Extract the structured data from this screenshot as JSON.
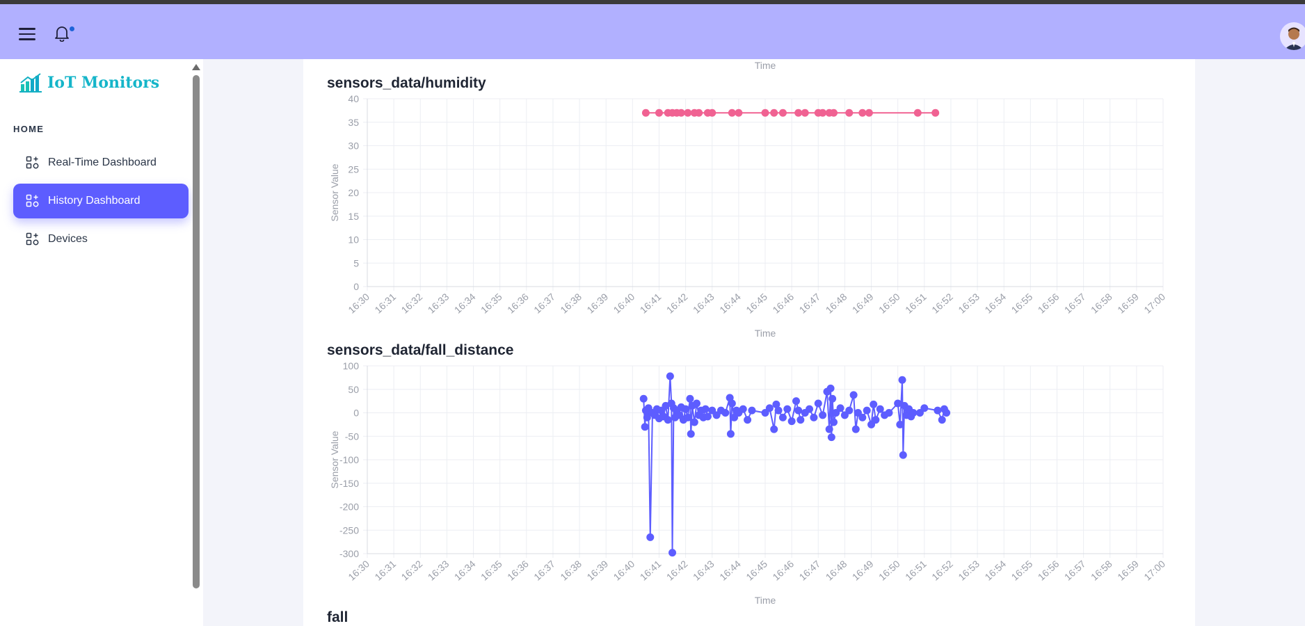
{
  "app": {
    "brand": "IoT Monitors"
  },
  "sidebar": {
    "section_label": "HOME",
    "items": [
      {
        "label": "Real-Time Dashboard",
        "active": false
      },
      {
        "label": "History Dashboard",
        "active": true
      },
      {
        "label": "Devices",
        "active": false
      }
    ]
  },
  "colors": {
    "accent": "#5d5dff",
    "topbar": "#b1b0ff",
    "humidity": "#f06292",
    "fall_distance": "#5d5dff"
  },
  "main": {
    "top_axis_label": "Time",
    "bottom_heading": "fall"
  },
  "chart_data": [
    {
      "type": "line",
      "title": "sensors_data/humidity",
      "xlabel": "Time",
      "ylabel": "Sensor Value",
      "ylim": [
        0,
        40
      ],
      "yticks": [
        "40",
        "35",
        "30",
        "25",
        "20",
        "15",
        "10",
        "5",
        "0"
      ],
      "xticks": [
        "16:30",
        "16:31",
        "16:32",
        "16:33",
        "16:34",
        "16:35",
        "16:36",
        "16:37",
        "16:38",
        "16:39",
        "16:40",
        "16:41",
        "16:42",
        "16:43",
        "16:44",
        "16:45",
        "16:46",
        "16:47",
        "16:48",
        "16:49",
        "16:50",
        "16:51",
        "16:52",
        "16:53",
        "16:54",
        "16:55",
        "16:56",
        "16:57",
        "16:58",
        "16:59",
        "17:00"
      ],
      "grid": true,
      "series": [
        {
          "color": "#f06292",
          "points": [
            [
              "16:40:30",
              37
            ],
            [
              "16:41:00",
              37
            ],
            [
              "16:41:20",
              37
            ],
            [
              "16:41:30",
              37
            ],
            [
              "16:41:40",
              37
            ],
            [
              "16:41:50",
              37
            ],
            [
              "16:42:05",
              37
            ],
            [
              "16:42:20",
              37
            ],
            [
              "16:42:30",
              37
            ],
            [
              "16:42:50",
              37
            ],
            [
              "16:43:00",
              37
            ],
            [
              "16:43:45",
              37
            ],
            [
              "16:44:00",
              37
            ],
            [
              "16:45:00",
              37
            ],
            [
              "16:45:20",
              37
            ],
            [
              "16:45:40",
              37
            ],
            [
              "16:46:15",
              37
            ],
            [
              "16:46:30",
              37
            ],
            [
              "16:47:00",
              37
            ],
            [
              "16:47:10",
              37
            ],
            [
              "16:47:25",
              37
            ],
            [
              "16:47:35",
              37
            ],
            [
              "16:48:10",
              37
            ],
            [
              "16:48:40",
              37
            ],
            [
              "16:48:55",
              37
            ],
            [
              "16:50:45",
              37
            ],
            [
              "16:51:25",
              37
            ]
          ]
        }
      ]
    },
    {
      "type": "line",
      "title": "sensors_data/fall_distance",
      "xlabel": "Time",
      "ylabel": "Sensor Value",
      "ylim": [
        -300,
        100
      ],
      "yticks": [
        "100",
        "50",
        "0",
        "-50",
        "-100",
        "-150",
        "-200",
        "-250",
        "-300"
      ],
      "xticks": [
        "16:30",
        "16:31",
        "16:32",
        "16:33",
        "16:34",
        "16:35",
        "16:36",
        "16:37",
        "16:38",
        "16:39",
        "16:40",
        "16:41",
        "16:42",
        "16:43",
        "16:44",
        "16:45",
        "16:46",
        "16:47",
        "16:48",
        "16:49",
        "16:50",
        "16:51",
        "16:52",
        "16:53",
        "16:54",
        "16:55",
        "16:56",
        "16:57",
        "16:58",
        "16:59",
        "17:00"
      ],
      "grid": true,
      "series": [
        {
          "color": "#5d5dff",
          "points": [
            [
              "16:40:25",
              30
            ],
            [
              "16:40:28",
              -30
            ],
            [
              "16:40:30",
              5
            ],
            [
              "16:40:33",
              -10
            ],
            [
              "16:40:36",
              10
            ],
            [
              "16:40:40",
              -265
            ],
            [
              "16:40:45",
              0
            ],
            [
              "16:40:50",
              -5
            ],
            [
              "16:40:55",
              8
            ],
            [
              "16:41:00",
              -12
            ],
            [
              "16:41:05",
              5
            ],
            [
              "16:41:10",
              -8
            ],
            [
              "16:41:15",
              15
            ],
            [
              "16:41:20",
              -15
            ],
            [
              "16:41:25",
              78
            ],
            [
              "16:41:28",
              20
            ],
            [
              "16:41:30",
              -298
            ],
            [
              "16:41:33",
              10
            ],
            [
              "16:41:36",
              -10
            ],
            [
              "16:41:40",
              5
            ],
            [
              "16:41:45",
              -5
            ],
            [
              "16:41:50",
              12
            ],
            [
              "16:41:55",
              -15
            ],
            [
              "16:42:00",
              8
            ],
            [
              "16:42:05",
              -10
            ],
            [
              "16:42:10",
              30
            ],
            [
              "16:42:12",
              -45
            ],
            [
              "16:42:15",
              15
            ],
            [
              "16:42:20",
              -20
            ],
            [
              "16:42:25",
              20
            ],
            [
              "16:42:30",
              -5
            ],
            [
              "16:42:35",
              5
            ],
            [
              "16:42:40",
              -10
            ],
            [
              "16:42:45",
              8
            ],
            [
              "16:42:50",
              -8
            ],
            [
              "16:43:00",
              5
            ],
            [
              "16:43:10",
              -5
            ],
            [
              "16:43:20",
              5
            ],
            [
              "16:43:30",
              0
            ],
            [
              "16:43:40",
              32
            ],
            [
              "16:43:42",
              -45
            ],
            [
              "16:43:45",
              20
            ],
            [
              "16:43:50",
              -10
            ],
            [
              "16:43:55",
              5
            ],
            [
              "16:44:00",
              0
            ],
            [
              "16:44:10",
              8
            ],
            [
              "16:44:20",
              -15
            ],
            [
              "16:44:30",
              5
            ],
            [
              "16:45:00",
              0
            ],
            [
              "16:45:10",
              10
            ],
            [
              "16:45:20",
              -35
            ],
            [
              "16:45:25",
              18
            ],
            [
              "16:45:30",
              5
            ],
            [
              "16:45:40",
              -10
            ],
            [
              "16:45:50",
              8
            ],
            [
              "16:46:00",
              -18
            ],
            [
              "16:46:10",
              25
            ],
            [
              "16:46:15",
              5
            ],
            [
              "16:46:20",
              -15
            ],
            [
              "16:46:30",
              0
            ],
            [
              "16:46:40",
              8
            ],
            [
              "16:46:50",
              -10
            ],
            [
              "16:47:00",
              20
            ],
            [
              "16:47:10",
              -5
            ],
            [
              "16:47:20",
              45
            ],
            [
              "16:47:25",
              -35
            ],
            [
              "16:47:28",
              52
            ],
            [
              "16:47:30",
              -52
            ],
            [
              "16:47:32",
              30
            ],
            [
              "16:47:35",
              -20
            ],
            [
              "16:47:40",
              0
            ],
            [
              "16:47:50",
              10
            ],
            [
              "16:48:00",
              -5
            ],
            [
              "16:48:10",
              5
            ],
            [
              "16:48:20",
              38
            ],
            [
              "16:48:25",
              -35
            ],
            [
              "16:48:30",
              0
            ],
            [
              "16:48:40",
              -10
            ],
            [
              "16:48:50",
              5
            ],
            [
              "16:49:00",
              -25
            ],
            [
              "16:49:05",
              18
            ],
            [
              "16:49:10",
              -15
            ],
            [
              "16:49:20",
              8
            ],
            [
              "16:49:30",
              -5
            ],
            [
              "16:49:40",
              0
            ],
            [
              "16:50:00",
              20
            ],
            [
              "16:50:05",
              -25
            ],
            [
              "16:50:10",
              70
            ],
            [
              "16:50:12",
              -90
            ],
            [
              "16:50:15",
              15
            ],
            [
              "16:50:20",
              -5
            ],
            [
              "16:50:25",
              8
            ],
            [
              "16:50:30",
              -8
            ],
            [
              "16:50:35",
              0
            ],
            [
              "16:50:50",
              0
            ],
            [
              "16:51:00",
              10
            ],
            [
              "16:51:30",
              5
            ],
            [
              "16:51:40",
              -15
            ],
            [
              "16:51:45",
              8
            ],
            [
              "16:51:50",
              0
            ]
          ]
        }
      ]
    }
  ]
}
